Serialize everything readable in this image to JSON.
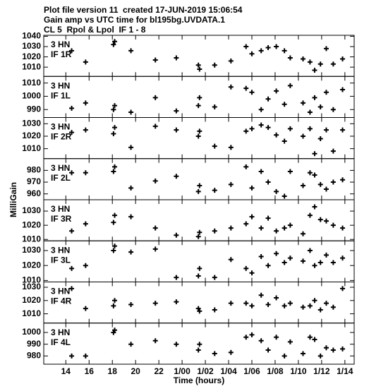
{
  "header": {
    "lines": [
      "Plot file version 11  created 17-JUN-2019 15:06:54",
      "Gain amp vs UTC time for bl195bg.UVDATA.1",
      "CL 5  Rpol & Lpol  IF 1 - 8"
    ]
  },
  "y_label": "MilliGain",
  "x_axis": {
    "label": "Time (hours)",
    "xlim": [
      12.1,
      38.8
    ],
    "xticks": [
      14,
      16,
      18,
      20,
      22,
      {
        "value": 24,
        "label": "1/00"
      },
      {
        "value": 26,
        "label": "1/02"
      },
      {
        "value": 28,
        "label": "1/04"
      },
      {
        "value": 30,
        "label": "1/06"
      },
      {
        "value": 32,
        "label": "1/08"
      },
      {
        "value": 34,
        "label": "1/10"
      },
      {
        "value": 36,
        "label": "1/12"
      },
      {
        "value": 38,
        "label": "1/14"
      }
    ]
  },
  "chart_data": [
    {
      "type": "scatter",
      "label": [
        "3 HN",
        "IF 1R"
      ],
      "ylim": [
        1001,
        1041
      ],
      "yticks": [
        1010,
        1020,
        1030,
        1040
      ],
      "x": [
        14.5,
        15.7,
        18.1,
        18.2,
        19.6,
        21.7,
        23.5,
        25.4,
        25.5,
        26.8,
        28.2,
        29.5,
        30.0,
        30.8,
        31.4,
        32.1,
        32.8,
        33.3,
        34.4,
        35.0,
        35.4,
        35.9,
        36.4,
        37.0,
        37.8
      ],
      "values": [
        1026,
        1015,
        1032,
        1035,
        1026,
        1017,
        1019,
        1012,
        1008,
        1012,
        1016,
        1030,
        1023,
        1026,
        1029,
        1030,
        1026,
        1019,
        1018,
        1015,
        1007,
        1013,
        1028,
        1013,
        1018
      ]
    },
    {
      "type": "scatter",
      "label": [
        "3 HN",
        "IF 1L"
      ],
      "ylim": [
        984,
        1015
      ],
      "yticks": [
        990,
        1000,
        1010
      ],
      "x": [
        14.5,
        15.7,
        18.1,
        18.2,
        19.6,
        21.7,
        23.5,
        25.4,
        25.5,
        26.8,
        28.2,
        29.5,
        30.0,
        30.8,
        31.4,
        32.1,
        32.8,
        33.3,
        34.4,
        35.0,
        35.4,
        35.9,
        36.4,
        37.0,
        37.8
      ],
      "values": [
        991,
        995,
        990,
        993,
        988,
        999,
        989,
        993,
        999,
        992,
        1007,
        1006,
        1003,
        990,
        998,
        1004,
        994,
        1008,
        995,
        988,
        999,
        992,
        1003,
        990,
        1005
      ]
    },
    {
      "type": "scatter",
      "label": [
        "3 HN",
        "IF 2R"
      ],
      "ylim": [
        1002,
        1035
      ],
      "yticks": [
        1010,
        1020,
        1030
      ],
      "x": [
        14.5,
        15.7,
        18.1,
        18.2,
        19.6,
        21.7,
        23.5,
        25.4,
        25.5,
        26.8,
        28.2,
        29.5,
        30.0,
        30.8,
        31.4,
        32.1,
        32.8,
        33.3,
        34.4,
        35.0,
        35.4,
        35.9,
        36.4,
        37.0,
        37.8
      ],
      "values": [
        1023,
        1025,
        1022,
        1027,
        1011,
        1028,
        1025,
        1020,
        1024,
        1012,
        1011,
        1024,
        1026,
        1029,
        1027,
        1021,
        1016,
        1026,
        1020,
        1026,
        1006,
        1018,
        1025,
        1008,
        1025
      ]
    },
    {
      "type": "scatter",
      "label": [
        "3 HN",
        "IF 2L"
      ],
      "ylim": [
        955,
        990
      ],
      "yticks": [
        960,
        970,
        980
      ],
      "x": [
        14.5,
        15.7,
        18.1,
        18.2,
        19.6,
        21.7,
        23.5,
        25.4,
        25.5,
        26.8,
        28.2,
        29.5,
        30.0,
        30.8,
        31.4,
        32.1,
        32.8,
        33.3,
        34.4,
        35.0,
        35.4,
        35.9,
        36.4,
        37.0,
        37.8
      ],
      "values": [
        978,
        978,
        979,
        983,
        965,
        971,
        975,
        962,
        967,
        963,
        968,
        983,
        965,
        979,
        970,
        962,
        958,
        979,
        967,
        978,
        976,
        968,
        964,
        970,
        972
      ]
    },
    {
      "type": "scatter",
      "label": [
        "3 HN",
        "IF 3R"
      ],
      "ylim": [
        1009,
        1038
      ],
      "yticks": [
        1010,
        1020,
        1030
      ],
      "x": [
        14.5,
        15.7,
        18.1,
        18.2,
        19.6,
        21.7,
        23.5,
        25.4,
        25.5,
        26.8,
        28.2,
        29.5,
        30.0,
        30.8,
        31.4,
        32.1,
        32.8,
        33.3,
        34.4,
        35.0,
        35.4,
        35.9,
        36.4,
        37.0,
        37.8
      ],
      "values": [
        1016,
        1021,
        1022,
        1027,
        1026,
        1018,
        1013,
        1012,
        1015,
        1016,
        1018,
        1021,
        1026,
        1018,
        1025,
        1016,
        1018,
        1020,
        1014,
        1027,
        1033,
        1024,
        1023,
        1020,
        1018
      ]
    },
    {
      "type": "scatter",
      "label": [
        "3 HN",
        "IF 3L"
      ],
      "ylim": [
        1009,
        1036.5
      ],
      "yticks": [
        1010,
        1020,
        1030
      ],
      "x": [
        14.5,
        15.7,
        18.1,
        18.2,
        19.6,
        21.7,
        23.5,
        25.4,
        25.5,
        26.8,
        28.2,
        29.5,
        30.0,
        30.8,
        31.4,
        32.1,
        32.8,
        33.3,
        34.4,
        35.0,
        35.4,
        35.9,
        36.4,
        37.0,
        37.8
      ],
      "values": [
        1018,
        1020,
        1030,
        1033,
        1029,
        1031,
        1012,
        1013,
        1018,
        1012,
        1024,
        1018,
        1015,
        1026,
        1020,
        1028,
        1022,
        1025,
        1023,
        1030,
        1020,
        1022,
        1027,
        1022,
        1025
      ]
    },
    {
      "type": "scatter",
      "label": [
        "3 HN",
        "IF 4R"
      ],
      "ylim": [
        1003,
        1034
      ],
      "yticks": [
        1010,
        1020,
        1030
      ],
      "x": [
        14.5,
        15.7,
        18.1,
        18.2,
        19.6,
        21.7,
        23.5,
        25.4,
        25.5,
        26.8,
        28.2,
        29.5,
        30.0,
        30.8,
        31.4,
        32.1,
        32.8,
        33.3,
        34.4,
        35.0,
        35.4,
        35.9,
        36.4,
        37.0,
        37.8
      ],
      "values": [
        1029,
        1014,
        1016,
        1020,
        1017,
        1018,
        1019,
        1014,
        1012,
        1013,
        1018,
        1018,
        1016,
        1024,
        1017,
        1022,
        1016,
        1018,
        1015,
        1016,
        1020,
        1013,
        1018,
        1015,
        1029
      ]
    },
    {
      "type": "scatter",
      "label": [
        "3 HN",
        "IF 4L"
      ],
      "ylim": [
        973,
        1008
      ],
      "yticks": [
        980,
        990,
        1000
      ],
      "x": [
        14.5,
        15.7,
        18.1,
        18.2,
        19.6,
        21.7,
        23.5,
        25.4,
        25.5,
        26.8,
        28.2,
        29.5,
        30.0,
        30.8,
        31.4,
        32.1,
        32.8,
        33.3,
        34.4,
        35.0,
        35.4,
        35.9,
        36.4,
        37.0,
        37.8
      ],
      "values": [
        980,
        980,
        1000,
        1002,
        990,
        993,
        990,
        985,
        990,
        982,
        983,
        996,
        998,
        993,
        985,
        996,
        980,
        992,
        982,
        996,
        994,
        980,
        987,
        985,
        986
      ]
    }
  ]
}
